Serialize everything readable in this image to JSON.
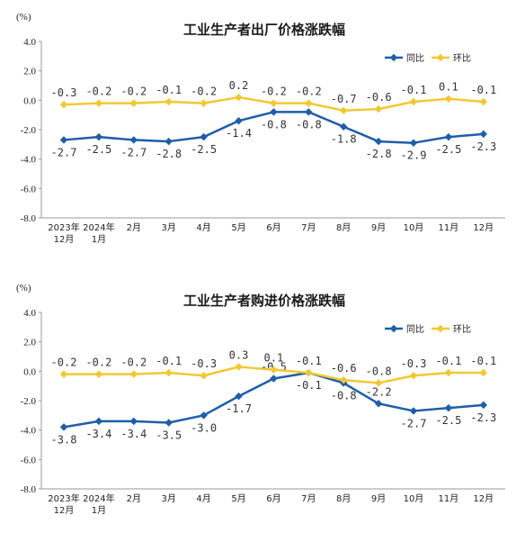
{
  "chart_data": [
    {
      "type": "line",
      "title": "工业生产者出厂价格涨跌幅",
      "yunit": "(%)",
      "ylim": [
        -8.0,
        4.0
      ],
      "yticks": [
        "4.0",
        "2.0",
        "0.0",
        "-2.0",
        "-4.0",
        "-6.0",
        "-8.0"
      ],
      "categories": [
        [
          "2023年",
          "12月"
        ],
        [
          "2024年",
          "1月"
        ],
        [
          "2月"
        ],
        [
          "3月"
        ],
        [
          "4月"
        ],
        [
          "5月"
        ],
        [
          "6月"
        ],
        [
          "7月"
        ],
        [
          "8月"
        ],
        [
          "9月"
        ],
        [
          "10月"
        ],
        [
          "11月"
        ],
        [
          "12月"
        ]
      ],
      "legend_position": "top-right",
      "series": [
        {
          "name": "同比",
          "color": "#1f5ea8",
          "values": [
            -2.7,
            -2.5,
            -2.7,
            -2.8,
            -2.5,
            -1.4,
            -0.8,
            -0.8,
            -1.8,
            -2.8,
            -2.9,
            -2.5,
            -2.3
          ],
          "labels": [
            "-2.7",
            "-2.5",
            "-2.7",
            "-2.8",
            "-2.5",
            "-1.4",
            "-0.8",
            "-0.8",
            "-1.8",
            "-2.8",
            "-2.9",
            "-2.5",
            "-2.3"
          ]
        },
        {
          "name": "环比",
          "color": "#f2c832",
          "values": [
            -0.3,
            -0.2,
            -0.2,
            -0.1,
            -0.2,
            0.2,
            -0.2,
            -0.2,
            -0.7,
            -0.6,
            -0.1,
            0.1,
            -0.1
          ],
          "labels": [
            "-0.3",
            "-0.2",
            "-0.2",
            "-0.1",
            "-0.2",
            "0.2",
            "-0.2",
            "-0.2",
            "-0.7",
            "-0.6",
            "-0.1",
            "0.1",
            "-0.1"
          ]
        }
      ]
    },
    {
      "type": "line",
      "title": "工业生产者购进价格涨跌幅",
      "yunit": "(%)",
      "ylim": [
        -8.0,
        4.0
      ],
      "yticks": [
        "4.0",
        "2.0",
        "0.0",
        "-2.0",
        "-4.0",
        "-6.0",
        "-8.0"
      ],
      "categories": [
        [
          "2023年",
          "12月"
        ],
        [
          "2024年",
          "1月"
        ],
        [
          "2月"
        ],
        [
          "3月"
        ],
        [
          "4月"
        ],
        [
          "5月"
        ],
        [
          "6月"
        ],
        [
          "7月"
        ],
        [
          "8月"
        ],
        [
          "9月"
        ],
        [
          "10月"
        ],
        [
          "11月"
        ],
        [
          "12月"
        ]
      ],
      "legend_position": "top-right",
      "series": [
        {
          "name": "同比",
          "color": "#1f5ea8",
          "values": [
            -3.8,
            -3.4,
            -3.4,
            -3.5,
            -3.0,
            -1.7,
            -0.5,
            -0.1,
            -0.8,
            -2.2,
            -2.7,
            -2.5,
            -2.3
          ],
          "labels": [
            "-3.8",
            "-3.4",
            "-3.4",
            "-3.5",
            "-3.0",
            "-1.7",
            "-0.5",
            "-0.1",
            "-0.8",
            "-2.2",
            "-2.7",
            "-2.5",
            "-2.3"
          ]
        },
        {
          "name": "环比",
          "color": "#f2c832",
          "values": [
            -0.2,
            -0.2,
            -0.2,
            -0.1,
            -0.3,
            0.3,
            0.1,
            -0.1,
            -0.6,
            -0.8,
            -0.3,
            -0.1,
            -0.1
          ],
          "labels": [
            "-0.2",
            "-0.2",
            "-0.2",
            "-0.1",
            "-0.3",
            "0.3",
            "0.1",
            "-0.1",
            "-0.6",
            "-0.8",
            "-0.3",
            "-0.1",
            "-0.1"
          ]
        }
      ]
    }
  ]
}
